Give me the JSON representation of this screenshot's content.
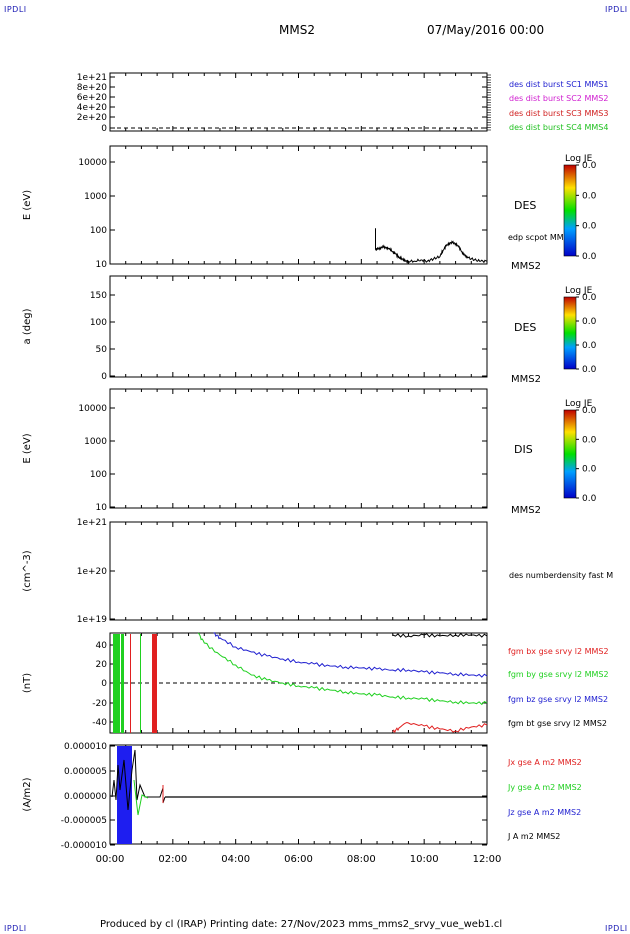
{
  "header": {
    "corner_tl": "IPDLI",
    "corner_tr": "IPDLI",
    "corner_bl": "IPDLI",
    "corner_br": "IPDLI",
    "spacecraft": "MMS2",
    "datetime": "07/May/2016 00:00"
  },
  "footer": {
    "text": "Produced by cl (IRAP)   Printing date: 27/Nov/2023   mms_mms2_srvy_vue_web1.cl"
  },
  "colorbar": {
    "title": "Log JE",
    "values": [
      "0.0",
      "0.0",
      "0.0",
      "0.0"
    ]
  },
  "chart_data": [
    {
      "type": "line",
      "panel": "des dist burst",
      "yticks": [
        "1e+21",
        "8e+20",
        "6e+20",
        "4e+20",
        "2e+20",
        "0"
      ],
      "ylim": [
        0,
        1.1e+21
      ],
      "reference_line": 0,
      "legend": [
        {
          "label": "des dist burst SC1 MMS1",
          "color": "#2020d0"
        },
        {
          "label": "des dist burst SC2 MMS2",
          "color": "#d020d0"
        },
        {
          "label": "des dist burst SC3 MMS3",
          "color": "#d02020"
        },
        {
          "label": "des dist burst SC4 MMS4",
          "color": "#20c020"
        }
      ]
    },
    {
      "type": "line",
      "panel": "DES energy spectrogram",
      "ylabel": "E (eV)",
      "yscale": "log",
      "ylim": [
        10,
        20000
      ],
      "yticks": [
        "10000",
        "1000",
        "100",
        "10"
      ],
      "side_label": "DES",
      "legend": [
        {
          "label": "edp scpot MMS2",
          "color": "#000000"
        }
      ],
      "sc_label": "MMS2",
      "series": [
        {
          "name": "edp scpot MMS2",
          "x": [
            8.45,
            8.45,
            8.5,
            8.6,
            8.7,
            8.8,
            8.9,
            9.0,
            9.1,
            9.2,
            9.3,
            9.4,
            9.5,
            9.7,
            9.9,
            10.1,
            10.3,
            10.5,
            10.6,
            10.7,
            10.8,
            10.9,
            11.0,
            11.1,
            11.2,
            11.3,
            11.4,
            11.6,
            11.8,
            12.0
          ],
          "values": [
            100,
            25,
            26,
            28,
            30,
            29,
            26,
            22,
            19,
            15,
            14,
            12,
            12,
            12,
            13,
            12,
            14,
            16,
            24,
            32,
            38,
            40,
            37,
            30,
            22,
            17,
            15,
            13,
            12,
            12
          ]
        }
      ]
    },
    {
      "type": "heatmap",
      "panel": "DES pitch angle",
      "ylabel": "a (deg)",
      "ylim": [
        0,
        180
      ],
      "yticks": [
        "150",
        "100",
        "50",
        "0"
      ],
      "side_label": "DES",
      "sc_label": "MMS2"
    },
    {
      "type": "heatmap",
      "panel": "DIS energy spectrogram",
      "ylabel": "E (eV)",
      "yscale": "log",
      "ylim": [
        10,
        20000
      ],
      "yticks": [
        "10000",
        "1000",
        "100",
        "10"
      ],
      "side_label": "DIS",
      "sc_label": "MMS2"
    },
    {
      "type": "line",
      "panel": "number density",
      "ylabel": "(cm^-3)",
      "yscale": "log",
      "ylim": [
        1e+19,
        1e+21
      ],
      "yticks": [
        "1e+21",
        "1e+20",
        "1e+19"
      ],
      "legend": [
        {
          "label": "des numberdensity fast M",
          "color": "#000000"
        }
      ]
    },
    {
      "type": "line",
      "panel": "fgm",
      "ylabel": "(nT)",
      "ylim": [
        -50,
        50
      ],
      "yticks": [
        "40",
        "20",
        "0",
        "-20",
        "-40"
      ],
      "reference_line": 0,
      "legend": [
        {
          "label": "fgm bx gse srvy l2 MMS2",
          "color": "#e02020"
        },
        {
          "label": "fgm by gse srvy l2 MMS2",
          "color": "#20d020"
        },
        {
          "label": "fgm bz gse srvy l2 MMS2",
          "color": "#2020d0"
        },
        {
          "label": "fgm bt gse srvy l2 MMS2",
          "color": "#000000"
        }
      ],
      "series": [
        {
          "name": "fgm bz gse srvy l2 MMS2",
          "color": "#2020d0",
          "x": [
            3.3,
            3.5,
            4.0,
            4.5,
            5.0,
            5.5,
            6.0,
            6.5,
            7.0,
            7.5,
            8.0,
            8.5,
            9.0,
            9.5,
            10.0,
            10.5,
            11.0,
            11.5,
            12.0
          ],
          "values": [
            50,
            45,
            36,
            31,
            27,
            24,
            21,
            19,
            17,
            16,
            15,
            14,
            13,
            13,
            11,
            10,
            9,
            8,
            7
          ]
        },
        {
          "name": "fgm by gse srvy l2 MMS2",
          "color": "#20d020",
          "x": [
            2.8,
            3.0,
            3.5,
            4.0,
            4.5,
            5.0,
            5.5,
            6.0,
            6.5,
            7.0,
            7.5,
            8.0,
            8.5,
            9.0,
            9.5,
            10.0,
            10.5,
            11.0,
            11.5,
            12.0
          ],
          "values": [
            50,
            40,
            28,
            18,
            8,
            3,
            0,
            -3,
            -5,
            -7,
            -9,
            -11,
            -12,
            -14,
            -15,
            -16,
            -18,
            -19,
            -20,
            -20
          ]
        },
        {
          "name": "fgm bt gse srvy l2 MMS2",
          "color": "#000000",
          "x": [
            9.0,
            9.5,
            10.0,
            10.5,
            11.0,
            11.5,
            12.0
          ],
          "values": [
            48,
            47,
            48,
            47,
            48,
            48,
            47
          ]
        },
        {
          "name": "fgm bx gse srvy l2 MMS2",
          "color": "#e02020",
          "x": [
            9.0,
            9.2,
            9.5,
            10.0,
            10.5,
            11.0,
            11.5,
            12.0
          ],
          "values": [
            -49,
            -45,
            -40,
            -43,
            -46,
            -48,
            -44,
            -42
          ]
        }
      ]
    },
    {
      "type": "line",
      "panel": "current density",
      "ylabel": "(A/m2)",
      "ylim": [
        -0.0001,
        0.0001
      ],
      "yticks": [
        "0.000010",
        "0.000005",
        "0.000000",
        "-0.000005",
        "-0.000010"
      ],
      "legend": [
        {
          "label": "Jx gse A m2 MMS2",
          "color": "#e02020"
        },
        {
          "label": "Jy gse A m2 MMS2",
          "color": "#20d020"
        },
        {
          "label": "Jz gse A m2 MMS2",
          "color": "#2020d0"
        },
        {
          "label": "J A m2 MMS2",
          "color": "#000000"
        }
      ],
      "xticks": [
        "00:00",
        "02:00",
        "04:00",
        "06:00",
        "08:00",
        "10:00",
        "12:00"
      ],
      "xlim_hours": [
        0,
        12
      ]
    }
  ]
}
